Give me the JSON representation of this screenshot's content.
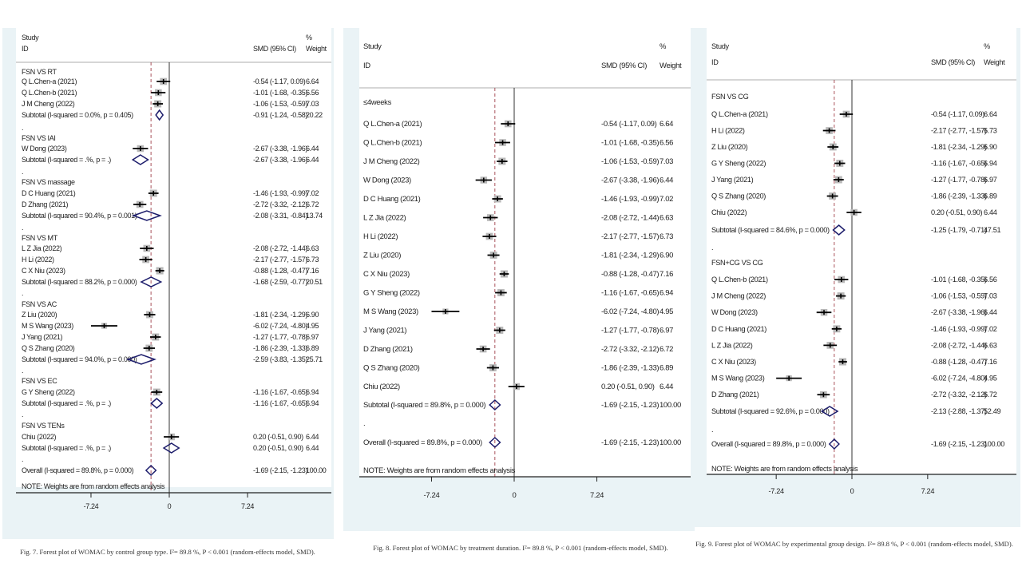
{
  "chart_data": [
    {
      "type": "forest",
      "header": {
        "study": "Study",
        "id": "ID",
        "smd": "SMD (95% CI)",
        "pct": "%",
        "weight": "Weight"
      },
      "xticks": [
        "-7.24",
        "0",
        "7.24"
      ],
      "xtick_values": [
        -7.24,
        0,
        7.24
      ],
      "overall_smd": -1.69,
      "caption": "Fig. 7. Forest plot of WOMAC by control group type. I²= 89.8 %, P < 0.001 (random-effects model, SMD).",
      "rows": [
        {
          "type": "group",
          "label": "FSN VS RT"
        },
        {
          "type": "study",
          "label": "Q L.Chen-a (2021)",
          "smd": -0.54,
          "lo": -1.17,
          "hi": 0.09,
          "ci": "-0.54 (-1.17, 0.09)",
          "weight": "6.64"
        },
        {
          "type": "study",
          "label": "Q L.Chen-b (2021)",
          "smd": -1.01,
          "lo": -1.68,
          "hi": -0.35,
          "ci": "-1.01 (-1.68, -0.35)",
          "weight": "6.56"
        },
        {
          "type": "study",
          "label": "J M Cheng (2022)",
          "smd": -1.06,
          "lo": -1.53,
          "hi": -0.59,
          "ci": "-1.06 (-1.53, -0.59)",
          "weight": "7.03"
        },
        {
          "type": "subtotal",
          "label": "Subtotal  (I-squared = 0.0%, p = 0.405)",
          "smd": -0.91,
          "lo": -1.24,
          "hi": -0.58,
          "ci": "-0.91 (-1.24, -0.58)",
          "weight": "20.22"
        },
        {
          "type": "spacer",
          "label": "."
        },
        {
          "type": "group",
          "label": "FSN VS IAI"
        },
        {
          "type": "study",
          "label": "W Dong (2023)",
          "smd": -2.67,
          "lo": -3.38,
          "hi": -1.96,
          "ci": "-2.67 (-3.38, -1.96)",
          "weight": "6.44"
        },
        {
          "type": "subtotal",
          "label": "Subtotal  (I-squared = .%, p = .)",
          "smd": -2.67,
          "lo": -3.38,
          "hi": -1.96,
          "ci": "-2.67 (-3.38, -1.96)",
          "weight": "6.44"
        },
        {
          "type": "spacer",
          "label": "."
        },
        {
          "type": "group",
          "label": "FSN VS massage"
        },
        {
          "type": "study",
          "label": "D C Huang (2021)",
          "smd": -1.46,
          "lo": -1.93,
          "hi": -0.99,
          "ci": "-1.46 (-1.93, -0.99)",
          "weight": "7.02"
        },
        {
          "type": "study",
          "label": "D Zhang (2021)",
          "smd": -2.72,
          "lo": -3.32,
          "hi": -2.12,
          "ci": "-2.72 (-3.32, -2.12)",
          "weight": "6.72"
        },
        {
          "type": "subtotal",
          "label": "Subtotal  (I-squared = 90.4%, p = 0.001)",
          "smd": -2.08,
          "lo": -3.31,
          "hi": -0.84,
          "ci": "-2.08 (-3.31, -0.84)",
          "weight": "13.74"
        },
        {
          "type": "spacer",
          "label": "."
        },
        {
          "type": "group",
          "label": "FSN VS MT"
        },
        {
          "type": "study",
          "label": "L Z Jia (2022)",
          "smd": -2.08,
          "lo": -2.72,
          "hi": -1.44,
          "ci": "-2.08 (-2.72, -1.44)",
          "weight": "6.63"
        },
        {
          "type": "study",
          "label": "H Li (2022)",
          "smd": -2.17,
          "lo": -2.77,
          "hi": -1.57,
          "ci": "-2.17 (-2.77, -1.57)",
          "weight": "6.73"
        },
        {
          "type": "study",
          "label": "C X Niu (2023)",
          "smd": -0.88,
          "lo": -1.28,
          "hi": -0.47,
          "ci": "-0.88 (-1.28, -0.47)",
          "weight": "7.16"
        },
        {
          "type": "subtotal",
          "label": "Subtotal  (I-squared = 88.2%, p = 0.000)",
          "smd": -1.68,
          "lo": -2.59,
          "hi": -0.77,
          "ci": "-1.68 (-2.59, -0.77)",
          "weight": "20.51"
        },
        {
          "type": "spacer",
          "label": "."
        },
        {
          "type": "group",
          "label": "FSN VS AC"
        },
        {
          "type": "study",
          "label": "Z Liu (2020)",
          "smd": -1.81,
          "lo": -2.34,
          "hi": -1.29,
          "ci": "-1.81 (-2.34, -1.29)",
          "weight": "6.90"
        },
        {
          "type": "study",
          "label": "M S Wang (2023)",
          "smd": -6.02,
          "lo": -7.24,
          "hi": -4.8,
          "ci": "-6.02 (-7.24, -4.80)",
          "weight": "4.95"
        },
        {
          "type": "study",
          "label": "J Yang (2021)",
          "smd": -1.27,
          "lo": -1.77,
          "hi": -0.78,
          "ci": "-1.27 (-1.77, -0.78)",
          "weight": "6.97"
        },
        {
          "type": "study",
          "label": "Q S Zhang (2020)",
          "smd": -1.86,
          "lo": -2.39,
          "hi": -1.33,
          "ci": "-1.86 (-2.39, -1.33)",
          "weight": "6.89"
        },
        {
          "type": "subtotal",
          "label": "Subtotal  (I-squared = 94.0%, p = 0.000)",
          "smd": -2.59,
          "lo": -3.83,
          "hi": -1.35,
          "ci": "-2.59 (-3.83, -1.35)",
          "weight": "25.71"
        },
        {
          "type": "spacer",
          "label": "."
        },
        {
          "type": "group",
          "label": "FSN VS EC"
        },
        {
          "type": "study",
          "label": "G Y Sheng (2022)",
          "smd": -1.16,
          "lo": -1.67,
          "hi": -0.65,
          "ci": "-1.16 (-1.67, -0.65)",
          "weight": "6.94"
        },
        {
          "type": "subtotal",
          "label": "Subtotal  (I-squared = .%, p = .)",
          "smd": -1.16,
          "lo": -1.67,
          "hi": -0.65,
          "ci": "-1.16 (-1.67, -0.65)",
          "weight": "6.94"
        },
        {
          "type": "spacer",
          "label": "."
        },
        {
          "type": "group",
          "label": "FSN VS TENs"
        },
        {
          "type": "study",
          "label": "Chiu (2022)",
          "smd": 0.2,
          "lo": -0.51,
          "hi": 0.9,
          "ci": "0.20 (-0.51, 0.90)",
          "weight": "6.44"
        },
        {
          "type": "subtotal",
          "label": "Subtotal  (I-squared = .%, p = .)",
          "smd": 0.2,
          "lo": -0.51,
          "hi": 0.9,
          "ci": "0.20 (-0.51, 0.90)",
          "weight": "6.44"
        },
        {
          "type": "spacer",
          "label": "."
        },
        {
          "type": "overall",
          "label": "Overall  (I-squared = 89.8%, p = 0.000)",
          "smd": -1.69,
          "lo": -2.15,
          "hi": -1.23,
          "ci": "-1.69 (-2.15, -1.23)",
          "weight": "100.00"
        },
        {
          "type": "note",
          "label": "NOTE: Weights are from random effects analysis"
        }
      ]
    },
    {
      "type": "forest",
      "header": {
        "study": "Study",
        "id": "ID",
        "smd": "SMD (95% CI)",
        "pct": "%",
        "weight": "Weight"
      },
      "xticks": [
        "-7.24",
        "0",
        "7.24"
      ],
      "xtick_values": [
        -7.24,
        0,
        7.24
      ],
      "overall_smd": -1.69,
      "caption": "Fig. 8. Forest plot of WOMAC by treatment duration. I²= 89.8 %, P < 0.001 (random-effects model, SMD).",
      "rows": [
        {
          "type": "group",
          "label": "≤4weeks"
        },
        {
          "type": "study",
          "label": "Q L.Chen-a (2021)",
          "smd": -0.54,
          "lo": -1.17,
          "hi": 0.09,
          "ci": "-0.54 (-1.17, 0.09)",
          "weight": "6.64"
        },
        {
          "type": "study",
          "label": "Q L.Chen-b (2021)",
          "smd": -1.01,
          "lo": -1.68,
          "hi": -0.35,
          "ci": "-1.01 (-1.68, -0.35)",
          "weight": "6.56"
        },
        {
          "type": "study",
          "label": "J M Cheng (2022)",
          "smd": -1.06,
          "lo": -1.53,
          "hi": -0.59,
          "ci": "-1.06 (-1.53, -0.59)",
          "weight": "7.03"
        },
        {
          "type": "study",
          "label": "W Dong (2023)",
          "smd": -2.67,
          "lo": -3.38,
          "hi": -1.96,
          "ci": "-2.67 (-3.38, -1.96)",
          "weight": "6.44"
        },
        {
          "type": "study",
          "label": "D C Huang (2021)",
          "smd": -1.46,
          "lo": -1.93,
          "hi": -0.99,
          "ci": "-1.46 (-1.93, -0.99)",
          "weight": "7.02"
        },
        {
          "type": "study",
          "label": "L Z Jia (2022)",
          "smd": -2.08,
          "lo": -2.72,
          "hi": -1.44,
          "ci": "-2.08 (-2.72, -1.44)",
          "weight": "6.63"
        },
        {
          "type": "study",
          "label": "H Li (2022)",
          "smd": -2.17,
          "lo": -2.77,
          "hi": -1.57,
          "ci": "-2.17 (-2.77, -1.57)",
          "weight": "6.73"
        },
        {
          "type": "study",
          "label": "Z Liu (2020)",
          "smd": -1.81,
          "lo": -2.34,
          "hi": -1.29,
          "ci": "-1.81 (-2.34, -1.29)",
          "weight": "6.90"
        },
        {
          "type": "study",
          "label": "C X Niu (2023)",
          "smd": -0.88,
          "lo": -1.28,
          "hi": -0.47,
          "ci": "-0.88 (-1.28, -0.47)",
          "weight": "7.16"
        },
        {
          "type": "study",
          "label": "G Y Sheng (2022)",
          "smd": -1.16,
          "lo": -1.67,
          "hi": -0.65,
          "ci": "-1.16 (-1.67, -0.65)",
          "weight": "6.94"
        },
        {
          "type": "study",
          "label": "M S Wang (2023)",
          "smd": -6.02,
          "lo": -7.24,
          "hi": -4.8,
          "ci": "-6.02 (-7.24, -4.80)",
          "weight": "4.95"
        },
        {
          "type": "study",
          "label": "J Yang (2021)",
          "smd": -1.27,
          "lo": -1.77,
          "hi": -0.78,
          "ci": "-1.27 (-1.77, -0.78)",
          "weight": "6.97"
        },
        {
          "type": "study",
          "label": "D Zhang (2021)",
          "smd": -2.72,
          "lo": -3.32,
          "hi": -2.12,
          "ci": "-2.72 (-3.32, -2.12)",
          "weight": "6.72"
        },
        {
          "type": "study",
          "label": "Q S Zhang (2020)",
          "smd": -1.86,
          "lo": -2.39,
          "hi": -1.33,
          "ci": "-1.86 (-2.39, -1.33)",
          "weight": "6.89"
        },
        {
          "type": "study",
          "label": "Chiu (2022)",
          "smd": 0.2,
          "lo": -0.51,
          "hi": 0.9,
          "ci": "0.20 (-0.51, 0.90)",
          "weight": "6.44"
        },
        {
          "type": "subtotal",
          "label": "Subtotal  (I-squared = 89.8%, p = 0.000)",
          "smd": -1.69,
          "lo": -2.15,
          "hi": -1.23,
          "ci": "-1.69 (-2.15, -1.23)",
          "weight": "100.00"
        },
        {
          "type": "spacer",
          "label": "."
        },
        {
          "type": "overall",
          "label": "Overall  (I-squared = 89.8%, p = 0.000)",
          "smd": -1.69,
          "lo": -2.15,
          "hi": -1.23,
          "ci": "-1.69 (-2.15, -1.23)",
          "weight": "100.00"
        },
        {
          "type": "note",
          "label": "NOTE: Weights are from random effects analysis"
        }
      ]
    },
    {
      "type": "forest",
      "header": {
        "study": "Study",
        "id": "ID",
        "smd": "SMD (95% CI)",
        "pct": "%",
        "weight": "Weight"
      },
      "xticks": [
        "-7.24",
        "0",
        "7.24"
      ],
      "xtick_values": [
        -7.24,
        0,
        7.24
      ],
      "overall_smd": -1.69,
      "caption": "Fig. 9. Forest plot of WOMAC by experimental group design. I²= 89.8 %, P < 0.001 (random-effects model, SMD).",
      "rows": [
        {
          "type": "group",
          "label": "FSN VS CG"
        },
        {
          "type": "study",
          "label": "Q L.Chen-a (2021)",
          "smd": -0.54,
          "lo": -1.17,
          "hi": 0.09,
          "ci": "-0.54 (-1.17, 0.09)",
          "weight": "6.64"
        },
        {
          "type": "study",
          "label": "H Li (2022)",
          "smd": -2.17,
          "lo": -2.77,
          "hi": -1.57,
          "ci": "-2.17 (-2.77, -1.57)",
          "weight": "6.73"
        },
        {
          "type": "study",
          "label": "Z Liu (2020)",
          "smd": -1.81,
          "lo": -2.34,
          "hi": -1.29,
          "ci": "-1.81 (-2.34, -1.29)",
          "weight": "6.90"
        },
        {
          "type": "study",
          "label": "G Y Sheng (2022)",
          "smd": -1.16,
          "lo": -1.67,
          "hi": -0.65,
          "ci": "-1.16 (-1.67, -0.65)",
          "weight": "6.94"
        },
        {
          "type": "study",
          "label": "J Yang (2021)",
          "smd": -1.27,
          "lo": -1.77,
          "hi": -0.78,
          "ci": "-1.27 (-1.77, -0.78)",
          "weight": "6.97"
        },
        {
          "type": "study",
          "label": "Q S Zhang (2020)",
          "smd": -1.86,
          "lo": -2.39,
          "hi": -1.33,
          "ci": "-1.86 (-2.39, -1.33)",
          "weight": "6.89"
        },
        {
          "type": "study",
          "label": "Chiu (2022)",
          "smd": 0.2,
          "lo": -0.51,
          "hi": 0.9,
          "ci": "0.20 (-0.51, 0.90)",
          "weight": "6.44"
        },
        {
          "type": "subtotal",
          "label": "Subtotal  (I-squared = 84.6%, p = 0.000)",
          "smd": -1.25,
          "lo": -1.79,
          "hi": -0.71,
          "ci": "-1.25 (-1.79, -0.71)",
          "weight": "47.51"
        },
        {
          "type": "spacer",
          "label": "."
        },
        {
          "type": "group",
          "label": "FSN+CG VS CG"
        },
        {
          "type": "study",
          "label": "Q L.Chen-b (2021)",
          "smd": -1.01,
          "lo": -1.68,
          "hi": -0.35,
          "ci": "-1.01 (-1.68, -0.35)",
          "weight": "6.56"
        },
        {
          "type": "study",
          "label": "J M Cheng (2022)",
          "smd": -1.06,
          "lo": -1.53,
          "hi": -0.59,
          "ci": "-1.06 (-1.53, -0.59)",
          "weight": "7.03"
        },
        {
          "type": "study",
          "label": "W Dong (2023)",
          "smd": -2.67,
          "lo": -3.38,
          "hi": -1.96,
          "ci": "-2.67 (-3.38, -1.96)",
          "weight": "6.44"
        },
        {
          "type": "study",
          "label": "D C Huang (2021)",
          "smd": -1.46,
          "lo": -1.93,
          "hi": -0.99,
          "ci": "-1.46 (-1.93, -0.99)",
          "weight": "7.02"
        },
        {
          "type": "study",
          "label": "L Z Jia (2022)",
          "smd": -2.08,
          "lo": -2.72,
          "hi": -1.44,
          "ci": "-2.08 (-2.72, -1.44)",
          "weight": "6.63"
        },
        {
          "type": "study",
          "label": "C X Niu (2023)",
          "smd": -0.88,
          "lo": -1.28,
          "hi": -0.47,
          "ci": "-0.88 (-1.28, -0.47)",
          "weight": "7.16"
        },
        {
          "type": "study",
          "label": "M S Wang (2023)",
          "smd": -6.02,
          "lo": -7.24,
          "hi": -4.8,
          "ci": "-6.02 (-7.24, -4.80)",
          "weight": "4.95"
        },
        {
          "type": "study",
          "label": "D Zhang (2021)",
          "smd": -2.72,
          "lo": -3.32,
          "hi": -2.12,
          "ci": "-2.72 (-3.32, -2.12)",
          "weight": "6.72"
        },
        {
          "type": "subtotal",
          "label": "Subtotal  (I-squared = 92.6%, p = 0.000)",
          "smd": -2.13,
          "lo": -2.88,
          "hi": -1.37,
          "ci": "-2.13 (-2.88, -1.37)",
          "weight": "52.49"
        },
        {
          "type": "spacer",
          "label": "."
        },
        {
          "type": "overall",
          "label": "Overall  (I-squared = 89.8%, p = 0.000)",
          "smd": -1.69,
          "lo": -2.15,
          "hi": -1.23,
          "ci": "-1.69 (-2.15, -1.23)",
          "weight": "100.00"
        },
        {
          "type": "note",
          "label": "NOTE: Weights are from random effects analysis"
        }
      ]
    }
  ],
  "colors": {
    "panel_bg": "#eaf3f6",
    "diamond": "#1c1c6b",
    "ref_line": "#a0404a",
    "square": "#b9b9b9"
  }
}
